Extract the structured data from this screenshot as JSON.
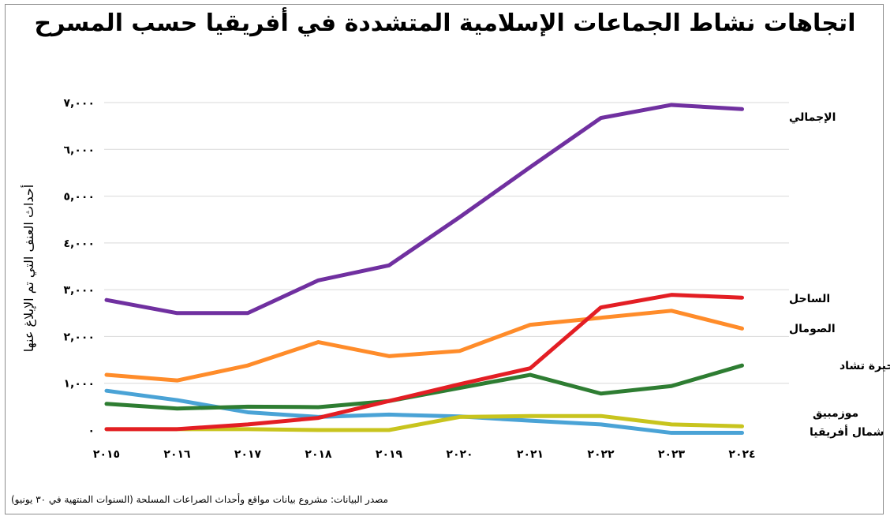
{
  "title": "اتجاهات نشاط الجماعات الإسلامية المتشددة في أفريقيا حسب المسرح",
  "source": "مصدر البيانات: مشروع بيانات مواقع وأحداث الصراعات المسلحة (السنوات المنتهية في ٣٠ يونيو)",
  "chart_data": {
    "type": "line",
    "title": "اتجاهات نشاط الجماعات الإسلامية المتشددة في أفريقيا حسب المسرح",
    "ylabel": "أحداث العنف التي تم الإبلاغ عنها",
    "xlabel": "",
    "x": [
      "٢٠١٥",
      "٢٠١٦",
      "٢٠١٧",
      "٢٠١٨",
      "٢٠١٩",
      "٢٠٢٠",
      "٢٠٢١",
      "٢٠٢٢",
      "٢٠٢٣",
      "٢٠٢٤"
    ],
    "ylim": [
      0,
      7000
    ],
    "yticks": [
      {
        "value": 0,
        "label": "٠"
      },
      {
        "value": 1000,
        "label": "١,٠٠٠"
      },
      {
        "value": 2000,
        "label": "٢,٠٠٠"
      },
      {
        "value": 3000,
        "label": "٣,٠٠٠"
      },
      {
        "value": 4000,
        "label": "٤,٠٠٠"
      },
      {
        "value": 5000,
        "label": "٥,٠٠٠"
      },
      {
        "value": 6000,
        "label": "٦,٠٠٠"
      },
      {
        "value": 7000,
        "label": "٧,٠٠٠"
      }
    ],
    "grid": true,
    "series": [
      {
        "name": "الإجمالي",
        "color": "#7030a0",
        "values": [
          2780,
          2500,
          2500,
          3200,
          3520,
          4550,
          5620,
          6670,
          6950,
          6860
        ]
      },
      {
        "name": "الساحل",
        "color": "#e31e24",
        "values": [
          20,
          20,
          120,
          260,
          620,
          980,
          1320,
          2620,
          2890,
          2830
        ]
      },
      {
        "name": "الصومال",
        "color": "#ff8c2a",
        "values": [
          1180,
          1060,
          1380,
          1880,
          1580,
          1690,
          2250,
          2400,
          2550,
          2170
        ]
      },
      {
        "name": "حوض بحيرة تشاد",
        "color": "#2e7d32",
        "values": [
          560,
          460,
          500,
          490,
          620,
          900,
          1180,
          780,
          940,
          1380
        ]
      },
      {
        "name": "موزمبيق",
        "color": "#c8c41e",
        "values": [
          20,
          20,
          20,
          0,
          0,
          280,
          300,
          300,
          120,
          80
        ]
      },
      {
        "name": "شمال أفريقيا",
        "color": "#4aa3d6",
        "values": [
          840,
          640,
          380,
          280,
          330,
          290,
          200,
          120,
          -60,
          -60
        ]
      }
    ]
  }
}
